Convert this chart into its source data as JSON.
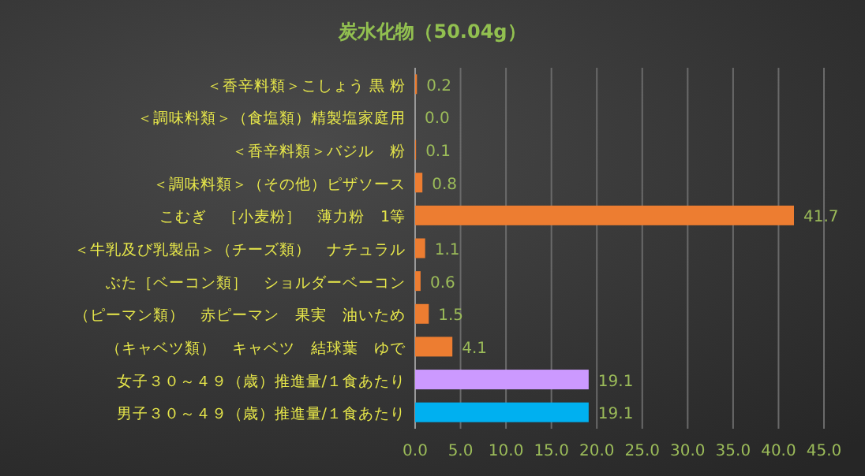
{
  "chart_data": {
    "type": "bar",
    "orientation": "horizontal",
    "title": "炭水化物（50.04g）",
    "categories": [
      "＜香辛料類＞こしょう 黒 粉",
      "＜調味料類＞（食塩類）精製塩家庭用",
      "＜香辛料類＞バジル　粉",
      "＜調味料類＞（その他）ピザソース",
      "こむぎ　［小麦粉］　薄力粉　1等",
      "＜牛乳及び乳製品＞（チーズ類）　ナチュラル",
      "ぶた［ベーコン類］　ショルダーベーコン",
      "（ピーマン類）　赤ピーマン　果実　油いため",
      "（キャベツ類）　キャベツ　結球葉　ゆで",
      "女子３０～４９（歳）推進量/１食あたり",
      "男子３０～４９（歳）推進量/１食あたり"
    ],
    "values": [
      0.2,
      0.0,
      0.1,
      0.8,
      41.7,
      1.1,
      0.6,
      1.5,
      4.1,
      19.1,
      19.1
    ],
    "value_labels": [
      "0.2",
      "0.0",
      "0.1",
      "0.8",
      "41.7",
      "1.1",
      "0.6",
      "1.5",
      "4.1",
      "19.1",
      "19.1"
    ],
    "colors": [
      "#ed7d31",
      "#ed7d31",
      "#ed7d31",
      "#ed7d31",
      "#ed7d31",
      "#ed7d31",
      "#ed7d31",
      "#ed7d31",
      "#ed7d31",
      "#cc99ff",
      "#00b0f0"
    ],
    "xlim": [
      0,
      45
    ],
    "xticks": [
      {
        "value": 0,
        "label": "0.0"
      },
      {
        "value": 5,
        "label": "5.0"
      },
      {
        "value": 10,
        "label": "10.0"
      },
      {
        "value": 15,
        "label": "15.0"
      },
      {
        "value": 20,
        "label": "20.0"
      },
      {
        "value": 25,
        "label": "25.0"
      },
      {
        "value": 30,
        "label": "30.0"
      },
      {
        "value": 35,
        "label": "35.0"
      },
      {
        "value": 40,
        "label": "40.0"
      },
      {
        "value": 45,
        "label": "45.0"
      }
    ],
    "grid": "x"
  }
}
